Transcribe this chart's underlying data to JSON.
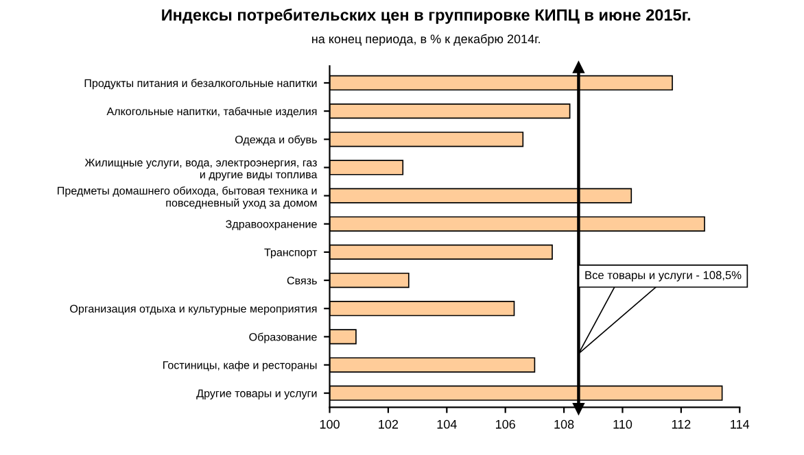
{
  "chart_data": {
    "type": "bar",
    "orientation": "horizontal",
    "title": "Индексы потребительских цен в группировке КИПЦ в июне 2015г.",
    "subtitle": "на конец периода, в % к декабрю 2014г.",
    "categories": [
      "Продукты питания и безалкогольные напитки",
      "Алкогольные напитки, табачные изделия",
      "Одежда и обувь",
      "Жилищные услуги, вода, электроэнергия, газ\nи другие виды топлива",
      "Предметы домашнего обихода, бытовая техника и\nповседневный уход за домом",
      "Здравоохранение",
      "Транспорт",
      "Связь",
      "Организация отдыха и культурные мероприятия",
      "Образование",
      "Гостиницы, кафе и рестораны",
      "Другие товары и услуги"
    ],
    "values": [
      111.7,
      108.2,
      106.6,
      102.5,
      110.3,
      112.8,
      107.6,
      102.7,
      106.3,
      100.9,
      107.0,
      113.4
    ],
    "color": "#ffcc99",
    "xlim": [
      100,
      114
    ],
    "xticks": [
      100,
      102,
      104,
      106,
      108,
      110,
      112,
      114
    ],
    "ref_lines": [
      {
        "axis": "x",
        "value": 108.5,
        "label": "Все товары и услуги - 108,5%",
        "color": "#000000"
      }
    ],
    "grid": false,
    "legend": false
  }
}
